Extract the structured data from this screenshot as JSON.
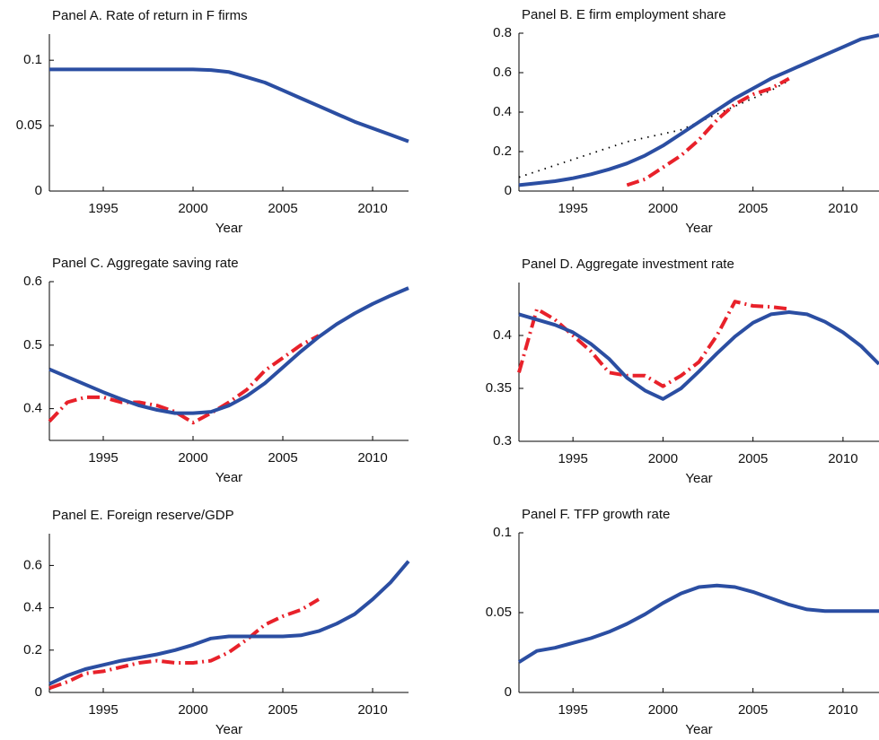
{
  "chart_data": [
    {
      "type": "line",
      "title": "Panel A. Rate of return in F firms",
      "x_label": "Year",
      "x": [
        1992,
        1993,
        1994,
        1995,
        1996,
        1997,
        1998,
        1999,
        2000,
        2001,
        2002,
        2003,
        2004,
        2005,
        2006,
        2007,
        2008,
        2009,
        2010,
        2011,
        2012
      ],
      "xlim": [
        1992,
        2012
      ],
      "xticks": [
        1995,
        2000,
        2005,
        2010
      ],
      "ylim": [
        0,
        0.12
      ],
      "yticks": [
        0,
        0.05,
        0.1
      ],
      "series": [
        {
          "color": "#2b4ea2",
          "style": "solid",
          "values": [
            0.093,
            0.093,
            0.093,
            0.093,
            0.093,
            0.093,
            0.093,
            0.093,
            0.093,
            0.0925,
            0.091,
            0.087,
            0.083,
            0.077,
            0.071,
            0.065,
            0.059,
            0.053,
            0.048,
            0.043,
            0.038
          ]
        }
      ]
    },
    {
      "type": "line",
      "title": "Panel B. E firm employment share",
      "x_label": "Year",
      "x": [
        1992,
        1993,
        1994,
        1995,
        1996,
        1997,
        1998,
        1999,
        2000,
        2001,
        2002,
        2003,
        2004,
        2005,
        2006,
        2007,
        2008,
        2009,
        2010,
        2011,
        2012
      ],
      "xlim": [
        1992,
        2012
      ],
      "xticks": [
        1995,
        2000,
        2005,
        2010
      ],
      "ylim": [
        0,
        0.8
      ],
      "yticks": [
        0,
        0.2,
        0.4,
        0.6,
        0.8
      ],
      "series": [
        {
          "color": "#000000",
          "style": "dotted",
          "values": [
            0.07,
            0.1,
            0.13,
            0.16,
            0.19,
            0.22,
            0.25,
            0.27,
            0.29,
            0.31,
            0.35,
            0.39,
            0.43,
            0.47,
            0.51,
            0.56,
            null,
            null,
            null,
            null,
            null
          ]
        },
        {
          "color": "#e8212a",
          "style": "dashdot",
          "values": [
            null,
            null,
            null,
            null,
            null,
            null,
            0.03,
            0.06,
            0.12,
            0.18,
            0.26,
            0.36,
            0.44,
            0.49,
            0.52,
            0.57,
            null,
            null,
            null,
            null,
            null
          ]
        },
        {
          "color": "#2b4ea2",
          "style": "solid",
          "values": [
            0.03,
            0.04,
            0.05,
            0.065,
            0.085,
            0.11,
            0.14,
            0.18,
            0.23,
            0.29,
            0.35,
            0.41,
            0.47,
            0.52,
            0.57,
            0.61,
            0.65,
            0.69,
            0.73,
            0.77,
            0.79
          ]
        }
      ]
    },
    {
      "type": "line",
      "title": "Panel C. Aggregate saving rate",
      "x_label": "Year",
      "x": [
        1992,
        1993,
        1994,
        1995,
        1996,
        1997,
        1998,
        1999,
        2000,
        2001,
        2002,
        2003,
        2004,
        2005,
        2006,
        2007,
        2008,
        2009,
        2010,
        2011,
        2012
      ],
      "xlim": [
        1992,
        2012
      ],
      "xticks": [
        1995,
        2000,
        2005,
        2010
      ],
      "ylim": [
        0.35,
        0.6
      ],
      "yticks": [
        0.4,
        0.5,
        0.6
      ],
      "series": [
        {
          "color": "#e8212a",
          "style": "dashdot",
          "values": [
            0.38,
            0.41,
            0.418,
            0.418,
            0.41,
            0.41,
            0.405,
            0.395,
            0.378,
            0.393,
            0.41,
            0.43,
            0.46,
            0.48,
            0.5,
            0.515,
            null,
            null,
            null,
            null,
            null
          ]
        },
        {
          "color": "#2b4ea2",
          "style": "solid",
          "values": [
            0.462,
            0.45,
            0.438,
            0.426,
            0.415,
            0.405,
            0.398,
            0.393,
            0.393,
            0.395,
            0.405,
            0.42,
            0.44,
            0.465,
            0.49,
            0.513,
            0.533,
            0.55,
            0.565,
            0.578,
            0.59
          ]
        }
      ]
    },
    {
      "type": "line",
      "title": "Panel D. Aggregate investment rate",
      "x_label": "Year",
      "x": [
        1992,
        1993,
        1994,
        1995,
        1996,
        1997,
        1998,
        1999,
        2000,
        2001,
        2002,
        2003,
        2004,
        2005,
        2006,
        2007,
        2008,
        2009,
        2010,
        2011,
        2012
      ],
      "xlim": [
        1992,
        2012
      ],
      "xticks": [
        1995,
        2000,
        2005,
        2010
      ],
      "ylim": [
        0.3,
        0.45
      ],
      "yticks": [
        0.3,
        0.35,
        0.4
      ],
      "series": [
        {
          "color": "#e8212a",
          "style": "dashdot",
          "values": [
            0.365,
            0.425,
            0.415,
            0.4,
            0.385,
            0.365,
            0.362,
            0.362,
            0.352,
            0.362,
            0.375,
            0.4,
            0.432,
            0.428,
            0.427,
            0.425,
            null,
            null,
            null,
            null,
            null
          ]
        },
        {
          "color": "#2b4ea2",
          "style": "solid",
          "values": [
            0.42,
            0.415,
            0.41,
            0.403,
            0.392,
            0.378,
            0.36,
            0.348,
            0.34,
            0.35,
            0.366,
            0.383,
            0.399,
            0.412,
            0.42,
            0.422,
            0.42,
            0.413,
            0.403,
            0.39,
            0.373
          ]
        }
      ]
    },
    {
      "type": "line",
      "title": "Panel E. Foreign reserve/GDP",
      "x_label": "Year",
      "x": [
        1992,
        1993,
        1994,
        1995,
        1996,
        1997,
        1998,
        1999,
        2000,
        2001,
        2002,
        2003,
        2004,
        2005,
        2006,
        2007,
        2008,
        2009,
        2010,
        2011,
        2012
      ],
      "xlim": [
        1992,
        2012
      ],
      "xticks": [
        1995,
        2000,
        2005,
        2010
      ],
      "ylim": [
        0,
        0.75
      ],
      "yticks": [
        0,
        0.2,
        0.4,
        0.6
      ],
      "series": [
        {
          "color": "#e8212a",
          "style": "dashdot",
          "values": [
            0.02,
            0.05,
            0.09,
            0.1,
            0.12,
            0.14,
            0.15,
            0.14,
            0.14,
            0.15,
            0.19,
            0.25,
            0.32,
            0.36,
            0.39,
            0.44,
            null,
            null,
            null,
            null,
            null
          ]
        },
        {
          "color": "#2b4ea2",
          "style": "solid",
          "values": [
            0.04,
            0.08,
            0.11,
            0.13,
            0.15,
            0.165,
            0.18,
            0.2,
            0.225,
            0.255,
            0.265,
            0.265,
            0.265,
            0.265,
            0.27,
            0.29,
            0.325,
            0.37,
            0.44,
            0.52,
            0.62
          ]
        }
      ]
    },
    {
      "type": "line",
      "title": "Panel F. TFP growth rate",
      "x_label": "Year",
      "x": [
        1992,
        1993,
        1994,
        1995,
        1996,
        1997,
        1998,
        1999,
        2000,
        2001,
        2002,
        2003,
        2004,
        2005,
        2006,
        2007,
        2008,
        2009,
        2010,
        2011,
        2012
      ],
      "xlim": [
        1992,
        2012
      ],
      "xticks": [
        1995,
        2000,
        2005,
        2010
      ],
      "ylim": [
        0,
        0.1
      ],
      "yticks": [
        0,
        0.05,
        0.1
      ],
      "series": [
        {
          "color": "#2b4ea2",
          "style": "solid",
          "values": [
            0.019,
            0.026,
            0.028,
            0.031,
            0.034,
            0.038,
            0.043,
            0.049,
            0.056,
            0.062,
            0.066,
            0.067,
            0.066,
            0.063,
            0.059,
            0.055,
            0.052,
            0.051,
            0.051,
            0.051,
            0.051
          ]
        }
      ]
    }
  ]
}
